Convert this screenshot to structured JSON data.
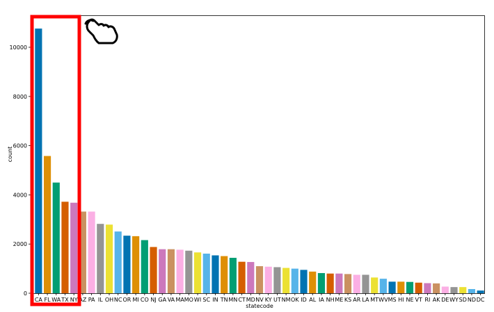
{
  "chart_data": {
    "type": "bar",
    "xlabel": "statecode",
    "ylabel": "count",
    "ylim": [
      0,
      11300
    ],
    "yticks": [
      0,
      2000,
      4000,
      6000,
      8000,
      10000
    ],
    "grid": false,
    "categories": [
      "CA",
      "FL",
      "WA",
      "TX",
      "NY",
      "AZ",
      "PA",
      "IL",
      "OH",
      "NC",
      "OR",
      "MI",
      "CO",
      "NJ",
      "GA",
      "VA",
      "MA",
      "MO",
      "WI",
      "SC",
      "IN",
      "TN",
      "MN",
      "CT",
      "MD",
      "NV",
      "KY",
      "UT",
      "NM",
      "OK",
      "ID",
      "AL",
      "IA",
      "NH",
      "ME",
      "KS",
      "AR",
      "LA",
      "MT",
      "WV",
      "MS",
      "HI",
      "NE",
      "VT",
      "RI",
      "AK",
      "DE",
      "WY",
      "SD",
      "ND",
      "DC"
    ],
    "values": [
      10760,
      5580,
      4500,
      3720,
      3680,
      3320,
      3320,
      2820,
      2790,
      2510,
      2340,
      2320,
      2160,
      1880,
      1790,
      1790,
      1770,
      1730,
      1660,
      1610,
      1540,
      1510,
      1440,
      1280,
      1270,
      1100,
      1080,
      1060,
      1030,
      1000,
      950,
      880,
      820,
      800,
      800,
      780,
      750,
      750,
      640,
      590,
      470,
      470,
      460,
      430,
      410,
      400,
      270,
      250,
      250,
      170,
      110
    ],
    "colors": [
      "#0173b2",
      "#de8f05",
      "#029e73",
      "#d55e00",
      "#cc78bc",
      "#ca9161",
      "#fbafe4",
      "#949494",
      "#ece133",
      "#56b4e9"
    ],
    "annotation": {
      "highlight_box_color": "#ff0000",
      "highlight_range": [
        "CA",
        "NY"
      ],
      "icon": "pointing-hand-icon"
    }
  }
}
